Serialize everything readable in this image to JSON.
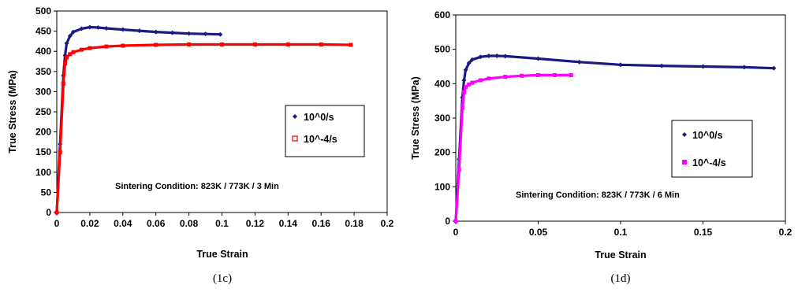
{
  "chart_data": [
    {
      "type": "line",
      "caption": "(1c)",
      "xlabel": "True Strain",
      "ylabel": "True Stress (MPa)",
      "xlim": [
        0,
        0.2
      ],
      "ylim": [
        0,
        500
      ],
      "x_ticks": [
        "0",
        "0.02",
        "0.04",
        "0.06",
        "0.08",
        "0.1",
        "0.12",
        "0.14",
        "0.16",
        "0.18",
        "0.2"
      ],
      "y_ticks": [
        "0",
        "50",
        "100",
        "150",
        "200",
        "250",
        "300",
        "350",
        "400",
        "450",
        "500"
      ],
      "legend_placement": "right",
      "annotation": "Sintering Condition: 823K / 773K / 3 Min",
      "series": [
        {
          "name": "10^0/s",
          "color": "#1a1a80",
          "marker": "diamond",
          "x": [
            0,
            0.002,
            0.004,
            0.005,
            0.006,
            0.008,
            0.01,
            0.015,
            0.02,
            0.025,
            0.03,
            0.04,
            0.05,
            0.06,
            0.07,
            0.08,
            0.09,
            0.099
          ],
          "y": [
            0,
            170,
            340,
            390,
            420,
            438,
            448,
            456,
            460,
            459,
            457,
            454,
            451,
            448,
            446,
            444,
            443,
            442
          ]
        },
        {
          "name": "10^-4/s",
          "color": "#ff0000",
          "marker": "square",
          "x": [
            0,
            0.002,
            0.004,
            0.005,
            0.006,
            0.008,
            0.01,
            0.015,
            0.02,
            0.03,
            0.04,
            0.06,
            0.08,
            0.1,
            0.12,
            0.14,
            0.16,
            0.178
          ],
          "y": [
            0,
            150,
            320,
            370,
            385,
            393,
            398,
            404,
            408,
            412,
            414,
            416,
            417,
            417,
            417,
            417,
            417,
            416
          ]
        }
      ]
    },
    {
      "type": "line",
      "caption": "(1d)",
      "xlabel": "True Strain",
      "ylabel": "True Stress (MPa)",
      "xlim": [
        0,
        0.2
      ],
      "ylim": [
        0,
        600
      ],
      "x_ticks": [
        "0",
        "0.05",
        "0.1",
        "0.15",
        "0.2"
      ],
      "y_ticks": [
        "0",
        "100",
        "200",
        "300",
        "400",
        "500",
        "600"
      ],
      "legend_placement": "right",
      "annotation": "Sintering Condition: 823K / 773K / 6 Min",
      "series": [
        {
          "name": "10^0/s",
          "color": "#1a1a80",
          "marker": "diamond",
          "x": [
            0,
            0.002,
            0.004,
            0.005,
            0.006,
            0.008,
            0.01,
            0.015,
            0.02,
            0.025,
            0.03,
            0.05,
            0.075,
            0.1,
            0.125,
            0.15,
            0.175,
            0.193
          ],
          "y": [
            0,
            180,
            360,
            410,
            440,
            460,
            470,
            478,
            481,
            481,
            480,
            473,
            463,
            455,
            452,
            450,
            448,
            445
          ]
        },
        {
          "name": "10^-4/s",
          "color": "#ff00ff",
          "marker": "square",
          "x": [
            0,
            0.002,
            0.004,
            0.005,
            0.006,
            0.008,
            0.01,
            0.015,
            0.02,
            0.03,
            0.04,
            0.05,
            0.06,
            0.07
          ],
          "y": [
            0,
            150,
            330,
            375,
            390,
            398,
            403,
            410,
            415,
            420,
            423,
            425,
            425,
            425
          ]
        }
      ]
    }
  ]
}
